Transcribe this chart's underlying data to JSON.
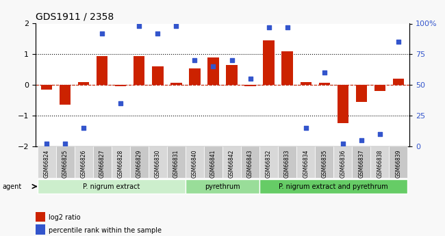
{
  "title": "GDS1911 / 2358",
  "samples": [
    "GSM66824",
    "GSM66825",
    "GSM66826",
    "GSM66827",
    "GSM66828",
    "GSM66829",
    "GSM66830",
    "GSM66831",
    "GSM66840",
    "GSM66841",
    "GSM66842",
    "GSM66843",
    "GSM66832",
    "GSM66833",
    "GSM66834",
    "GSM66835",
    "GSM66836",
    "GSM66837",
    "GSM66838",
    "GSM66839"
  ],
  "log2_ratio": [
    -0.15,
    -0.65,
    0.1,
    0.95,
    -0.05,
    0.95,
    0.6,
    0.07,
    0.55,
    0.9,
    0.65,
    -0.05,
    1.45,
    1.1,
    0.1,
    0.07,
    -1.25,
    -0.55,
    -0.2,
    0.2
  ],
  "percentile": [
    2,
    2,
    15,
    92,
    35,
    98,
    92,
    98,
    70,
    65,
    70,
    55,
    97,
    97,
    15,
    60,
    2,
    5,
    10,
    85
  ],
  "bar_color": "#cc2200",
  "dot_color": "#3355cc",
  "ylim": [
    -2,
    2
  ],
  "yticks_left": [
    -2,
    -1,
    0,
    1,
    2
  ],
  "yticks_right": [
    0,
    25,
    50,
    75,
    100
  ],
  "hline_dotted": [
    1,
    0,
    -1
  ],
  "hline_red": 0,
  "groups": [
    {
      "label": "P. nigrum extract",
      "start": 0,
      "end": 8,
      "color": "#cceecc"
    },
    {
      "label": "pyrethrum",
      "start": 8,
      "end": 12,
      "color": "#99dd99"
    },
    {
      "label": "P. nigrum extract and pyrethrum",
      "start": 12,
      "end": 20,
      "color": "#66cc66"
    }
  ],
  "agent_label": "agent",
  "legend_bar_label": "log2 ratio",
  "legend_dot_label": "percentile rank within the sample",
  "xlabel_rotation": 90,
  "bg_color": "#f0f0f0",
  "plot_bg": "#ffffff",
  "tick_label_area_color": "#d0d0d0"
}
